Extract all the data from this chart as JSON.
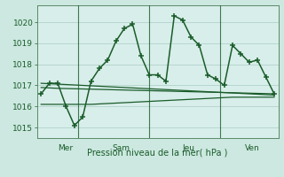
{
  "background_color": "#cce8e0",
  "plot_bg_color": "#d8eeea",
  "grid_color": "#aaccc4",
  "line_color": "#1a5c2a",
  "dark_line_color": "#2a6e3a",
  "xlabel": "Pression niveau de la mer( hPa )",
  "ylim": [
    1014.5,
    1020.8
  ],
  "yticks": [
    1015,
    1016,
    1017,
    1018,
    1019,
    1020
  ],
  "day_labels": [
    "Mer",
    "Sam",
    "Jeu",
    "Ven"
  ],
  "day_vline_positions": [
    0.175,
    0.49,
    0.77
  ],
  "series1_x": [
    0,
    1,
    2,
    3,
    4,
    5,
    6,
    7,
    8,
    9,
    10,
    11,
    12,
    13,
    14,
    15,
    16,
    17,
    18,
    19,
    20,
    21,
    22,
    23,
    24,
    25,
    26,
    27,
    28
  ],
  "series1_y": [
    1016.6,
    1017.1,
    1017.1,
    1016.0,
    1015.1,
    1015.5,
    1017.2,
    1017.8,
    1018.2,
    1019.1,
    1019.7,
    1019.9,
    1018.4,
    1017.5,
    1017.5,
    1017.2,
    1020.3,
    1020.1,
    1019.3,
    1018.9,
    1017.5,
    1017.3,
    1017.0,
    1018.9,
    1018.5,
    1018.1,
    1018.2,
    1017.4,
    1016.6
  ],
  "series2_y": [
    1017.1,
    1017.08,
    1017.06,
    1017.04,
    1017.02,
    1017.0,
    1016.98,
    1016.96,
    1016.94,
    1016.92,
    1016.9,
    1016.88,
    1016.86,
    1016.84,
    1016.82,
    1016.8,
    1016.78,
    1016.76,
    1016.74,
    1016.72,
    1016.7,
    1016.68,
    1016.66,
    1016.64,
    1016.62,
    1016.6,
    1016.58,
    1016.56,
    1016.54
  ],
  "series3_y": [
    1016.9,
    1016.88,
    1016.86,
    1016.85,
    1016.84,
    1016.83,
    1016.82,
    1016.81,
    1016.8,
    1016.79,
    1016.78,
    1016.77,
    1016.76,
    1016.75,
    1016.74,
    1016.73,
    1016.72,
    1016.71,
    1016.7,
    1016.69,
    1016.68,
    1016.67,
    1016.66,
    1016.65,
    1016.64,
    1016.63,
    1016.62,
    1016.61,
    1016.6
  ],
  "series4_y": [
    1016.1,
    1016.1,
    1016.1,
    1016.1,
    1016.1,
    1016.1,
    1016.1,
    1016.12,
    1016.14,
    1016.16,
    1016.18,
    1016.2,
    1016.22,
    1016.24,
    1016.26,
    1016.28,
    1016.3,
    1016.32,
    1016.34,
    1016.36,
    1016.38,
    1016.4,
    1016.42,
    1016.44,
    1016.44,
    1016.44,
    1016.44,
    1016.44,
    1016.44
  ]
}
